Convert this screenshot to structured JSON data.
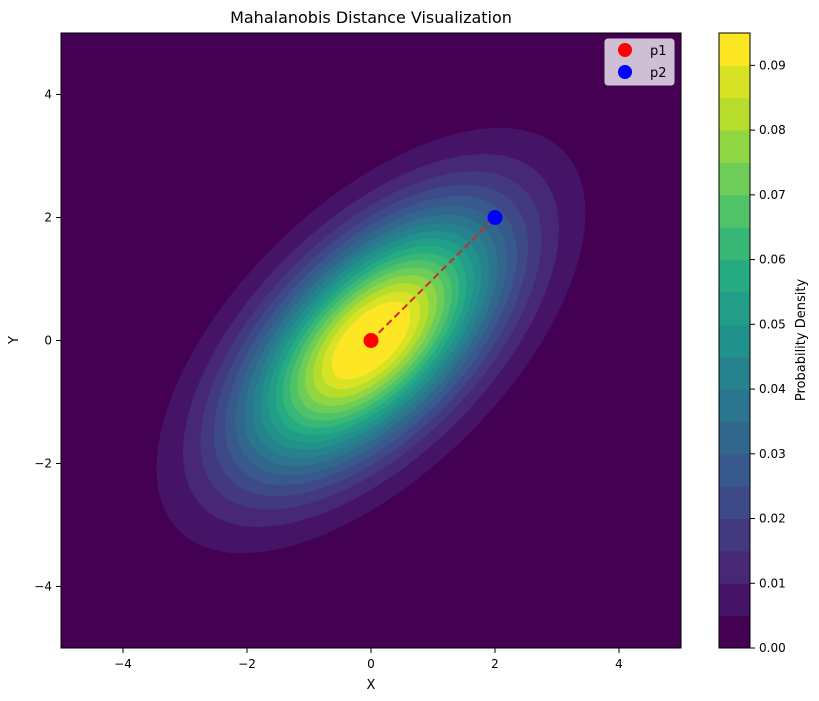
{
  "chart_data": {
    "type": "contour",
    "title": "Mahalanobis Distance Visualization",
    "xlabel": "X",
    "ylabel": "Y",
    "xlim": [
      -5,
      5
    ],
    "ylim": [
      -5,
      5
    ],
    "x_ticks": [
      -4,
      -2,
      0,
      2,
      4
    ],
    "y_ticks": [
      -4,
      -2,
      0,
      2,
      4
    ],
    "x_tick_labels": [
      "−4",
      "−2",
      "0",
      "2",
      "4"
    ],
    "y_tick_labels": [
      "−4",
      "−2",
      "0",
      "2",
      "4"
    ],
    "distribution": {
      "mean": [
        0,
        0
      ],
      "covariance": [
        [
          2.0,
          1.2
        ],
        [
          1.2,
          2.0
        ]
      ]
    },
    "contour_levels": [
      0.0,
      0.005,
      0.01,
      0.015,
      0.02,
      0.025,
      0.03,
      0.035,
      0.04,
      0.045,
      0.05,
      0.055,
      0.06,
      0.065,
      0.07,
      0.075,
      0.08,
      0.085,
      0.09,
      0.095
    ],
    "points": [
      {
        "name": "p1",
        "x": 0,
        "y": 0,
        "color": "#ff0000"
      },
      {
        "name": "p2",
        "x": 2,
        "y": 2,
        "color": "#0000ff"
      }
    ],
    "connector": {
      "from": "p1",
      "to": "p2",
      "style": "dashed",
      "color": "#d62728"
    },
    "legend": {
      "position": "top-right",
      "entries": [
        "p1",
        "p2"
      ]
    },
    "colorbar": {
      "label": "Probability Density",
      "colormap": "viridis",
      "range": [
        0.0,
        0.095
      ],
      "ticks": [
        0.0,
        0.01,
        0.02,
        0.03,
        0.04,
        0.05,
        0.06,
        0.07,
        0.08,
        0.09
      ],
      "tick_labels": [
        "0.00",
        "0.01",
        "0.02",
        "0.03",
        "0.04",
        "0.05",
        "0.06",
        "0.07",
        "0.08",
        "0.09"
      ]
    }
  }
}
